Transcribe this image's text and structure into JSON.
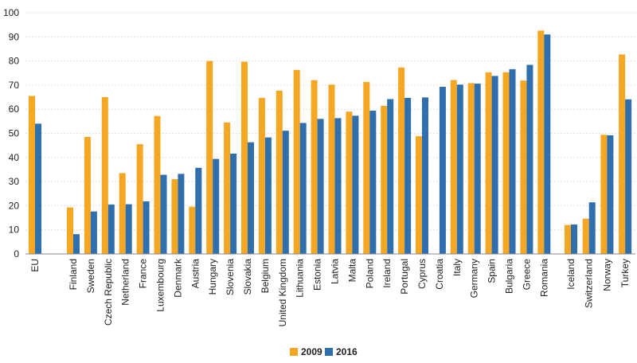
{
  "chart_data": {
    "type": "bar",
    "title": "",
    "xlabel": "",
    "ylabel": "",
    "ylim": [
      0,
      100
    ],
    "yticks": [
      0,
      10,
      20,
      30,
      40,
      50,
      60,
      70,
      80,
      90,
      100
    ],
    "grid": true,
    "legend_position": "bottom-center",
    "categories": [
      "EU",
      "Finland",
      "Sweden",
      "Czech Republic",
      "Netherland",
      "France",
      "Luxembourg",
      "Denmark",
      "Austria",
      "Hungary",
      "Slovenia",
      "Slovakia",
      "Belgium",
      "United Kingdom",
      "Lithuania",
      "Estonia",
      "Latvia",
      "Malta",
      "Poland",
      "Ireland",
      "Portugal",
      "Cyprus",
      "Croatia",
      "Italy",
      "Germany",
      "Spain",
      "Bulgaria",
      "Greece",
      "Romania",
      "Iceland",
      "Switzerland",
      "Norway",
      "Turkey"
    ],
    "series": [
      {
        "name": "2009",
        "color": "#F5A623",
        "values": [
          65.5,
          19.3,
          48.5,
          65,
          33.5,
          45.5,
          57.2,
          31,
          19.6,
          80,
          54.5,
          79.7,
          64.7,
          67.7,
          76.3,
          72,
          70.2,
          59,
          71.3,
          61.4,
          77.3,
          48.8,
          null,
          72.1,
          70.8,
          75.3,
          75.3,
          71.9,
          92.6,
          12,
          14.6,
          49.4,
          82.7
        ]
      },
      {
        "name": "2016",
        "color": "#2F6FAE",
        "values": [
          54,
          8.2,
          17.6,
          20.5,
          20.6,
          21.8,
          32.8,
          33.2,
          35.7,
          39.4,
          41.6,
          46.3,
          48.3,
          51.1,
          54.3,
          56,
          56.3,
          57.3,
          59.4,
          64.2,
          64.7,
          64.9,
          69.3,
          70.2,
          70.6,
          73.8,
          76.6,
          78.4,
          91,
          12.2,
          21.4,
          49.2,
          64.1
        ]
      }
    ]
  }
}
